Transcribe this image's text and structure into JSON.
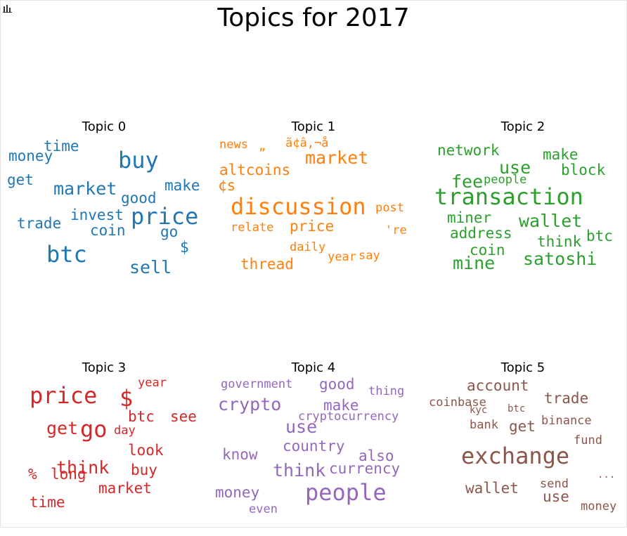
{
  "title": "Topics for 2017",
  "icons": {
    "toolbar": "bar-chart-icon"
  },
  "chart_data": {
    "type": "wordcloud",
    "panels": [
      {
        "title": "Topic 0",
        "color": "#1f77b4",
        "words": [
          {
            "text": "money",
            "weight": 3
          },
          {
            "text": "time",
            "weight": 3
          },
          {
            "text": "buy",
            "weight": 5
          },
          {
            "text": "get",
            "weight": 3
          },
          {
            "text": "market",
            "weight": 4
          },
          {
            "text": "make",
            "weight": 3
          },
          {
            "text": "good",
            "weight": 3
          },
          {
            "text": "trade",
            "weight": 3
          },
          {
            "text": "invest",
            "weight": 3
          },
          {
            "text": "price",
            "weight": 5
          },
          {
            "text": "coin",
            "weight": 3
          },
          {
            "text": "go",
            "weight": 3
          },
          {
            "text": "$",
            "weight": 3
          },
          {
            "text": "btc",
            "weight": 5
          },
          {
            "text": "sell",
            "weight": 4
          }
        ]
      },
      {
        "title": "Topic 1",
        "color": "#ff7f0e",
        "words": [
          {
            "text": "news",
            "weight": 2
          },
          {
            "text": "„",
            "weight": 2
          },
          {
            "text": "ã¢â‚¬å",
            "weight": 2
          },
          {
            "text": "market",
            "weight": 4
          },
          {
            "text": "altcoins",
            "weight": 3
          },
          {
            "text": "¢s",
            "weight": 3
          },
          {
            "text": "discussion",
            "weight": 5
          },
          {
            "text": "post",
            "weight": 2
          },
          {
            "text": "relate",
            "weight": 2
          },
          {
            "text": "price",
            "weight": 3
          },
          {
            "text": "'re",
            "weight": 2
          },
          {
            "text": "daily",
            "weight": 2
          },
          {
            "text": "thread",
            "weight": 3
          },
          {
            "text": "year",
            "weight": 2
          },
          {
            "text": "say",
            "weight": 2
          }
        ]
      },
      {
        "title": "Topic 2",
        "color": "#2ca02c",
        "words": [
          {
            "text": "network",
            "weight": 3
          },
          {
            "text": "make",
            "weight": 3
          },
          {
            "text": "use",
            "weight": 4
          },
          {
            "text": "block",
            "weight": 3
          },
          {
            "text": "fee",
            "weight": 4
          },
          {
            "text": "people",
            "weight": 2
          },
          {
            "text": "transaction",
            "weight": 5
          },
          {
            "text": "miner",
            "weight": 3
          },
          {
            "text": "wallet",
            "weight": 4
          },
          {
            "text": "address",
            "weight": 3
          },
          {
            "text": "think",
            "weight": 3
          },
          {
            "text": "btc",
            "weight": 3
          },
          {
            "text": "coin",
            "weight": 3
          },
          {
            "text": "mine",
            "weight": 4
          },
          {
            "text": "satoshi",
            "weight": 4
          }
        ]
      },
      {
        "title": "Topic 3",
        "color": "#d62728",
        "words": [
          {
            "text": "year",
            "weight": 2
          },
          {
            "text": "price",
            "weight": 5
          },
          {
            "text": "$",
            "weight": 5
          },
          {
            "text": "btc",
            "weight": 3
          },
          {
            "text": "see",
            "weight": 3
          },
          {
            "text": "get",
            "weight": 4
          },
          {
            "text": "go",
            "weight": 5
          },
          {
            "text": "day",
            "weight": 2
          },
          {
            "text": "look",
            "weight": 3
          },
          {
            "text": "think",
            "weight": 4
          },
          {
            "text": "buy",
            "weight": 3
          },
          {
            "text": "%",
            "weight": 3
          },
          {
            "text": "long",
            "weight": 3
          },
          {
            "text": "market",
            "weight": 3
          },
          {
            "text": "time",
            "weight": 3
          }
        ]
      },
      {
        "title": "Topic 4",
        "color": "#9467bd",
        "words": [
          {
            "text": "government",
            "weight": 2
          },
          {
            "text": "good",
            "weight": 3
          },
          {
            "text": "thing",
            "weight": 2
          },
          {
            "text": "crypto",
            "weight": 4
          },
          {
            "text": "make",
            "weight": 3
          },
          {
            "text": "cryptocurrency",
            "weight": 2
          },
          {
            "text": "use",
            "weight": 4
          },
          {
            "text": "country",
            "weight": 3
          },
          {
            "text": "know",
            "weight": 3
          },
          {
            "text": "also",
            "weight": 3
          },
          {
            "text": "think",
            "weight": 4
          },
          {
            "text": "currency",
            "weight": 3
          },
          {
            "text": "money",
            "weight": 3
          },
          {
            "text": "people",
            "weight": 5
          },
          {
            "text": "even",
            "weight": 2
          }
        ]
      },
      {
        "title": "Topic 5",
        "color": "#8c564b",
        "words": [
          {
            "text": "account",
            "weight": 3
          },
          {
            "text": "coinbase",
            "weight": 2
          },
          {
            "text": "trade",
            "weight": 3
          },
          {
            "text": "kyc",
            "weight": 1
          },
          {
            "text": "btc",
            "weight": 1
          },
          {
            "text": "bank",
            "weight": 2
          },
          {
            "text": "get",
            "weight": 3
          },
          {
            "text": "binance",
            "weight": 2
          },
          {
            "text": "fund",
            "weight": 2
          },
          {
            "text": "exchange",
            "weight": 5
          },
          {
            "text": "...",
            "weight": 1
          },
          {
            "text": "wallet",
            "weight": 3
          },
          {
            "text": "send",
            "weight": 2
          },
          {
            "text": "use",
            "weight": 3
          },
          {
            "text": "money",
            "weight": 2
          }
        ]
      }
    ]
  }
}
